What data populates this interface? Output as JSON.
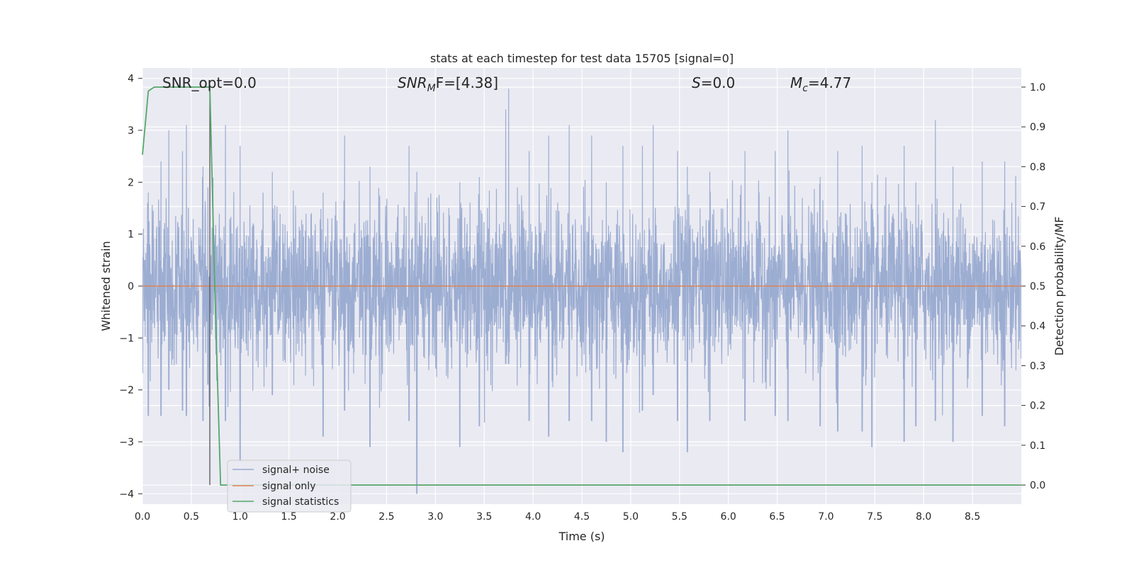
{
  "chart_data": {
    "type": "line",
    "title": "stats at each timestep for test data 15705 [signal=0]",
    "xlabel": "Time (s)",
    "ylabel": "Whitened strain",
    "y2label": "Detection probability/MF",
    "xlim": [
      0.0,
      9.0
    ],
    "ylim": [
      -4.2,
      4.2
    ],
    "y2lim": [
      -0.048,
      1.048
    ],
    "xticks": [
      0.0,
      0.5,
      1.0,
      1.5,
      2.0,
      2.5,
      3.0,
      3.5,
      4.0,
      4.5,
      5.0,
      5.5,
      6.0,
      6.5,
      7.0,
      7.5,
      8.0,
      8.5
    ],
    "xtick_labels": [
      "0.0",
      "0.5",
      "1.0",
      "1.5",
      "2.0",
      "2.5",
      "3.0",
      "3.5",
      "4.0",
      "4.5",
      "5.0",
      "5.5",
      "6.0",
      "6.5",
      "7.0",
      "7.5",
      "8.0",
      "8.5"
    ],
    "yticks": [
      -4,
      -3,
      -2,
      -1,
      0,
      1,
      2,
      3,
      4
    ],
    "ytick_labels": [
      "−4",
      "−3",
      "−2",
      "−1",
      "0",
      "1",
      "2",
      "3",
      "4"
    ],
    "y2ticks": [
      0.0,
      0.1,
      0.2,
      0.3,
      0.4,
      0.5,
      0.6,
      0.7,
      0.8,
      0.9,
      1.0
    ],
    "y2tick_labels": [
      "0.0",
      "0.1",
      "0.2",
      "0.3",
      "0.4",
      "0.5",
      "0.6",
      "0.7",
      "0.8",
      "0.9",
      "1.0"
    ],
    "grid": true,
    "legend_position": "lower-left",
    "annotations": {
      "snr_opt": "SNR_opt=0.0",
      "snr_mf_main": "SNR",
      "snr_mf_sub": "M",
      "snr_mf_rest": "F=[4.38]",
      "s_main": "S",
      "s_rest": "=0.0",
      "mc_main": "M",
      "mc_sub": "c",
      "mc_rest": "=4.77"
    },
    "vertical_marker_x": 0.69,
    "series": [
      {
        "name": "signal+ noise",
        "color": "#98aad0",
        "axis": "left",
        "duration": 9.0,
        "envelope_peaks": [
          [
            0.06,
            1.8,
            -2.5
          ],
          [
            0.19,
            2.4,
            -2.5
          ],
          [
            0.27,
            3.0,
            -2.0
          ],
          [
            0.41,
            2.6,
            -2.4
          ],
          [
            0.45,
            3.1,
            -2.5
          ],
          [
            0.62,
            2.3,
            -2.6
          ],
          [
            0.67,
            1.9,
            -1.9
          ],
          [
            0.85,
            3.1,
            -2.6
          ],
          [
            1.0,
            2.7,
            -3.4
          ],
          [
            1.33,
            2.2,
            -2.1
          ],
          [
            1.85,
            1.8,
            -2.9
          ],
          [
            2.07,
            2.9,
            -2.4
          ],
          [
            2.33,
            2.3,
            -3.1
          ],
          [
            2.73,
            2.7,
            -2.6
          ],
          [
            2.81,
            2.2,
            -4.0
          ],
          [
            3.25,
            2.0,
            -3.1
          ],
          [
            3.45,
            2.1,
            -2.7
          ],
          [
            3.72,
            3.4,
            -1.5
          ],
          [
            3.75,
            3.8,
            -1.5
          ],
          [
            3.96,
            2.6,
            -2.6
          ],
          [
            4.16,
            2.9,
            -2.9
          ],
          [
            4.37,
            3.1,
            -2.6
          ],
          [
            4.6,
            2.9,
            -2.6
          ],
          [
            4.75,
            2.0,
            -3.0
          ],
          [
            4.92,
            2.7,
            -3.2
          ],
          [
            5.12,
            2.7,
            -2.4
          ],
          [
            5.23,
            3.1,
            -2.1
          ],
          [
            5.48,
            2.6,
            -2.6
          ],
          [
            5.58,
            2.3,
            -3.2
          ],
          [
            5.81,
            2.2,
            -2.6
          ],
          [
            6.17,
            2.6,
            -2.6
          ],
          [
            6.48,
            2.6,
            -2.5
          ],
          [
            6.61,
            3.0,
            -2.6
          ],
          [
            6.94,
            2.1,
            -2.7
          ],
          [
            7.12,
            2.6,
            -2.8
          ],
          [
            7.37,
            2.7,
            -2.8
          ],
          [
            7.47,
            2.0,
            -3.1
          ],
          [
            7.8,
            2.7,
            -3.0
          ],
          [
            7.92,
            2.0,
            -2.7
          ],
          [
            8.12,
            3.2,
            -2.6
          ],
          [
            8.3,
            2.3,
            -3.0
          ],
          [
            8.6,
            2.4,
            -2.5
          ],
          [
            8.83,
            2.4,
            -2.7
          ]
        ]
      },
      {
        "name": "signal only",
        "color": "#dd8452",
        "axis": "left",
        "x": [
          0.0,
          9.0
        ],
        "y": [
          0.0,
          0.0
        ]
      },
      {
        "name": "signal statistics",
        "color": "#55a868",
        "axis": "right",
        "x": [
          0.0,
          0.06,
          0.12,
          0.25,
          0.5,
          0.68,
          0.69,
          0.74,
          0.8,
          9.0
        ],
        "y": [
          0.83,
          0.99,
          1.0,
          1.0,
          1.0,
          1.0,
          1.0,
          0.5,
          0.0,
          0.0
        ]
      }
    ]
  }
}
